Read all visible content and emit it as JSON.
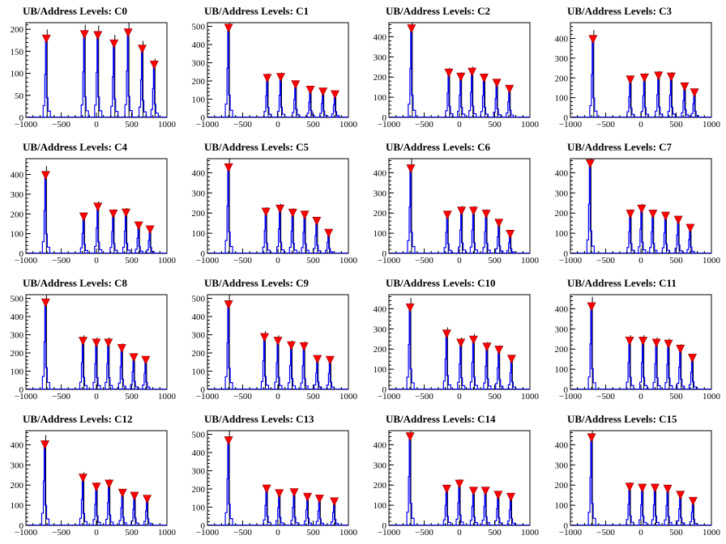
{
  "figure": {
    "rows": 4,
    "cols": 4
  },
  "chart_data": [
    {
      "type": "histogram",
      "title": "UB/Address Levels: C0",
      "xlim": [
        -1000,
        1000
      ],
      "ylim": [
        0,
        215
      ],
      "xticks": [
        -1000,
        -500,
        0,
        500,
        1000
      ],
      "yticks": [
        0,
        50,
        100,
        150,
        200
      ],
      "peaks": [
        {
          "x": -710,
          "y": 178
        },
        {
          "x": -170,
          "y": 188
        },
        {
          "x": 20,
          "y": 186
        },
        {
          "x": 250,
          "y": 167
        },
        {
          "x": 450,
          "y": 192
        },
        {
          "x": 650,
          "y": 155
        },
        {
          "x": 820,
          "y": 119
        }
      ]
    },
    {
      "type": "histogram",
      "title": "UB/Address Levels: C1",
      "xlim": [
        -1000,
        1000
      ],
      "ylim": [
        0,
        520
      ],
      "xticks": [
        -1000,
        -500,
        0,
        500,
        1000
      ],
      "yticks": [
        0,
        100,
        200,
        300,
        400,
        500
      ],
      "peaks": [
        {
          "x": -700,
          "y": 490
        },
        {
          "x": -150,
          "y": 215
        },
        {
          "x": 40,
          "y": 220
        },
        {
          "x": 250,
          "y": 180
        },
        {
          "x": 460,
          "y": 150
        },
        {
          "x": 640,
          "y": 140
        },
        {
          "x": 810,
          "y": 125
        }
      ]
    },
    {
      "type": "histogram",
      "title": "UB/Address Levels: C2",
      "xlim": [
        -1000,
        1000
      ],
      "ylim": [
        0,
        470
      ],
      "xticks": [
        -1000,
        -500,
        0,
        500,
        1000
      ],
      "yticks": [
        0,
        100,
        200,
        300,
        400
      ],
      "peaks": [
        {
          "x": -680,
          "y": 440
        },
        {
          "x": -150,
          "y": 220
        },
        {
          "x": 20,
          "y": 200
        },
        {
          "x": 180,
          "y": 225
        },
        {
          "x": 350,
          "y": 195
        },
        {
          "x": 530,
          "y": 170
        },
        {
          "x": 710,
          "y": 140
        }
      ]
    },
    {
      "type": "histogram",
      "title": "UB/Address Levels: C3",
      "xlim": [
        -1000,
        1000
      ],
      "ylim": [
        0,
        480
      ],
      "xticks": [
        -1000,
        -500,
        0,
        500,
        1000
      ],
      "yticks": [
        0,
        100,
        200,
        300,
        400
      ],
      "peaks": [
        {
          "x": -680,
          "y": 395
        },
        {
          "x": -150,
          "y": 190
        },
        {
          "x": 50,
          "y": 200
        },
        {
          "x": 250,
          "y": 210
        },
        {
          "x": 430,
          "y": 205
        },
        {
          "x": 620,
          "y": 155
        },
        {
          "x": 760,
          "y": 125
        }
      ]
    },
    {
      "type": "histogram",
      "title": "UB/Address Levels: C4",
      "xlim": [
        -1000,
        1000
      ],
      "ylim": [
        0,
        480
      ],
      "xticks": [
        -1000,
        -500,
        0,
        500,
        1000
      ],
      "yticks": [
        0,
        100,
        200,
        300,
        400
      ],
      "peaks": [
        {
          "x": -720,
          "y": 395
        },
        {
          "x": -180,
          "y": 185
        },
        {
          "x": 20,
          "y": 235
        },
        {
          "x": 240,
          "y": 200
        },
        {
          "x": 420,
          "y": 205
        },
        {
          "x": 600,
          "y": 140
        },
        {
          "x": 760,
          "y": 120
        }
      ]
    },
    {
      "type": "histogram",
      "title": "UB/Address Levels: C5",
      "xlim": [
        -1000,
        1000
      ],
      "ylim": [
        0,
        470
      ],
      "xticks": [
        -1000,
        -500,
        0,
        500,
        1000
      ],
      "yticks": [
        0,
        100,
        200,
        300,
        400
      ],
      "peaks": [
        {
          "x": -700,
          "y": 425
        },
        {
          "x": -170,
          "y": 205
        },
        {
          "x": 30,
          "y": 220
        },
        {
          "x": 210,
          "y": 200
        },
        {
          "x": 380,
          "y": 190
        },
        {
          "x": 550,
          "y": 160
        },
        {
          "x": 720,
          "y": 100
        }
      ]
    },
    {
      "type": "histogram",
      "title": "UB/Address Levels: C6",
      "xlim": [
        -1000,
        1000
      ],
      "ylim": [
        0,
        470
      ],
      "xticks": [
        -1000,
        -500,
        0,
        500,
        1000
      ],
      "yticks": [
        0,
        100,
        200,
        300,
        400
      ],
      "peaks": [
        {
          "x": -690,
          "y": 420
        },
        {
          "x": -170,
          "y": 190
        },
        {
          "x": 30,
          "y": 210
        },
        {
          "x": 200,
          "y": 210
        },
        {
          "x": 380,
          "y": 195
        },
        {
          "x": 560,
          "y": 150
        },
        {
          "x": 720,
          "y": 95
        }
      ]
    },
    {
      "type": "histogram",
      "title": "UB/Address Levels: C7",
      "xlim": [
        -1000,
        1000
      ],
      "ylim": [
        0,
        470
      ],
      "xticks": [
        -1000,
        -500,
        0,
        500,
        1000
      ],
      "yticks": [
        0,
        100,
        200,
        300,
        400
      ],
      "peaks": [
        {
          "x": -720,
          "y": 445
        },
        {
          "x": -150,
          "y": 195
        },
        {
          "x": 10,
          "y": 220
        },
        {
          "x": 170,
          "y": 195
        },
        {
          "x": 350,
          "y": 185
        },
        {
          "x": 530,
          "y": 165
        },
        {
          "x": 700,
          "y": 125
        }
      ]
    },
    {
      "type": "histogram",
      "title": "UB/Address Levels: C8",
      "xlim": [
        -1000,
        1000
      ],
      "ylim": [
        0,
        520
      ],
      "xticks": [
        -1000,
        -500,
        0,
        500,
        1000
      ],
      "yticks": [
        0,
        100,
        200,
        300,
        400,
        500
      ],
      "peaks": [
        {
          "x": -720,
          "y": 475
        },
        {
          "x": -190,
          "y": 265
        },
        {
          "x": 0,
          "y": 255
        },
        {
          "x": 170,
          "y": 255
        },
        {
          "x": 360,
          "y": 225
        },
        {
          "x": 530,
          "y": 175
        },
        {
          "x": 700,
          "y": 160
        }
      ]
    },
    {
      "type": "histogram",
      "title": "UB/Address Levels: C9",
      "xlim": [
        -1000,
        1000
      ],
      "ylim": [
        0,
        520
      ],
      "xticks": [
        -1000,
        -500,
        0,
        500,
        1000
      ],
      "yticks": [
        0,
        100,
        200,
        300,
        400,
        500
      ],
      "peaks": [
        {
          "x": -700,
          "y": 465
        },
        {
          "x": -190,
          "y": 285
        },
        {
          "x": 0,
          "y": 265
        },
        {
          "x": 190,
          "y": 240
        },
        {
          "x": 370,
          "y": 235
        },
        {
          "x": 560,
          "y": 165
        },
        {
          "x": 740,
          "y": 160
        }
      ]
    },
    {
      "type": "histogram",
      "title": "UB/Address Levels: C10",
      "xlim": [
        -1000,
        1000
      ],
      "ylim": [
        0,
        470
      ],
      "xticks": [
        -1000,
        -500,
        0,
        500,
        1000
      ],
      "yticks": [
        0,
        100,
        200,
        300,
        400
      ],
      "peaks": [
        {
          "x": -700,
          "y": 405
        },
        {
          "x": -180,
          "y": 275
        },
        {
          "x": 20,
          "y": 230
        },
        {
          "x": 200,
          "y": 245
        },
        {
          "x": 390,
          "y": 210
        },
        {
          "x": 560,
          "y": 195
        },
        {
          "x": 740,
          "y": 150
        }
      ]
    },
    {
      "type": "histogram",
      "title": "UB/Address Levels: C11",
      "xlim": [
        -1000,
        1000
      ],
      "ylim": [
        0,
        470
      ],
      "xticks": [
        -1000,
        -500,
        0,
        500,
        1000
      ],
      "yticks": [
        0,
        100,
        200,
        300,
        400
      ],
      "peaks": [
        {
          "x": -700,
          "y": 410
        },
        {
          "x": -160,
          "y": 240
        },
        {
          "x": 30,
          "y": 240
        },
        {
          "x": 220,
          "y": 230
        },
        {
          "x": 390,
          "y": 225
        },
        {
          "x": 560,
          "y": 200
        },
        {
          "x": 730,
          "y": 155
        }
      ]
    },
    {
      "type": "histogram",
      "title": "UB/Address Levels: C12",
      "xlim": [
        -1000,
        1000
      ],
      "ylim": [
        0,
        470
      ],
      "xticks": [
        -1000,
        -500,
        0,
        500,
        1000
      ],
      "yticks": [
        0,
        100,
        200,
        300,
        400
      ],
      "peaks": [
        {
          "x": -730,
          "y": 400
        },
        {
          "x": -190,
          "y": 235
        },
        {
          "x": 0,
          "y": 190
        },
        {
          "x": 180,
          "y": 205
        },
        {
          "x": 370,
          "y": 160
        },
        {
          "x": 540,
          "y": 145
        },
        {
          "x": 720,
          "y": 130
        }
      ]
    },
    {
      "type": "histogram",
      "title": "UB/Address Levels: C13",
      "xlim": [
        -1000,
        1000
      ],
      "ylim": [
        0,
        520
      ],
      "xticks": [
        -1000,
        -500,
        0,
        500,
        1000
      ],
      "yticks": [
        0,
        100,
        200,
        300,
        400,
        500
      ],
      "peaks": [
        {
          "x": -700,
          "y": 465
        },
        {
          "x": -160,
          "y": 200
        },
        {
          "x": 20,
          "y": 175
        },
        {
          "x": 230,
          "y": 180
        },
        {
          "x": 420,
          "y": 155
        },
        {
          "x": 590,
          "y": 145
        },
        {
          "x": 800,
          "y": 130
        }
      ]
    },
    {
      "type": "histogram",
      "title": "UB/Address Levels: C14",
      "xlim": [
        -1000,
        1000
      ],
      "ylim": [
        0,
        470
      ],
      "xticks": [
        -1000,
        -500,
        0,
        500,
        1000
      ],
      "yticks": [
        0,
        100,
        200,
        300,
        400
      ],
      "peaks": [
        {
          "x": -700,
          "y": 440
        },
        {
          "x": -180,
          "y": 180
        },
        {
          "x": 0,
          "y": 205
        },
        {
          "x": 200,
          "y": 170
        },
        {
          "x": 370,
          "y": 170
        },
        {
          "x": 550,
          "y": 150
        },
        {
          "x": 730,
          "y": 140
        }
      ]
    },
    {
      "type": "histogram",
      "title": "UB/Address Levels: C15",
      "xlim": [
        -1000,
        1000
      ],
      "ylim": [
        0,
        470
      ],
      "xticks": [
        -1000,
        -500,
        0,
        500,
        1000
      ],
      "yticks": [
        0,
        100,
        200,
        300,
        400
      ],
      "peaks": [
        {
          "x": -700,
          "y": 435
        },
        {
          "x": -160,
          "y": 190
        },
        {
          "x": 20,
          "y": 185
        },
        {
          "x": 200,
          "y": 185
        },
        {
          "x": 380,
          "y": 180
        },
        {
          "x": 560,
          "y": 150
        },
        {
          "x": 740,
          "y": 120
        }
      ]
    }
  ],
  "colors": {
    "histogram_line": "#0000ff",
    "spike_line": "#000000",
    "marker_fill": "#ff0000",
    "marker_stroke": "#880000",
    "axis": "#000000"
  }
}
